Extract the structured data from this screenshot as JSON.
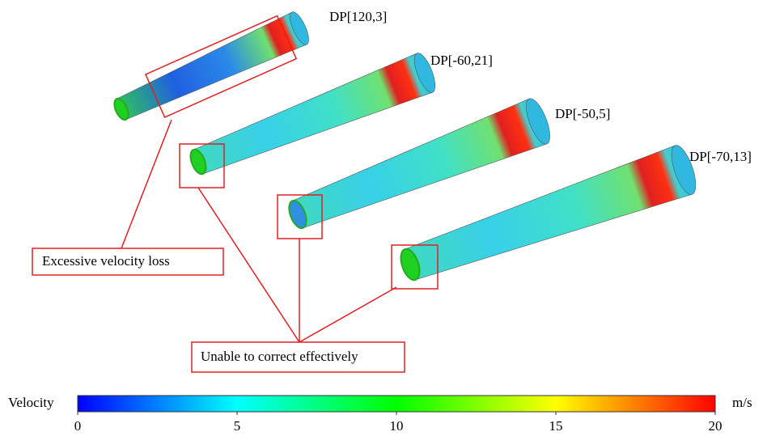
{
  "labels": [
    "DP[120,3]",
    "DP[-60,21]",
    "DP[-50,5]",
    "DP[-70,13]"
  ],
  "annotations": [
    "Excessive velocity loss",
    "Unable to correct effectively"
  ],
  "colorbar": {
    "title": "Velocity",
    "unit": "m/s",
    "lim": [
      0,
      20
    ],
    "ticks": [
      0,
      5,
      10,
      15,
      20
    ]
  }
}
